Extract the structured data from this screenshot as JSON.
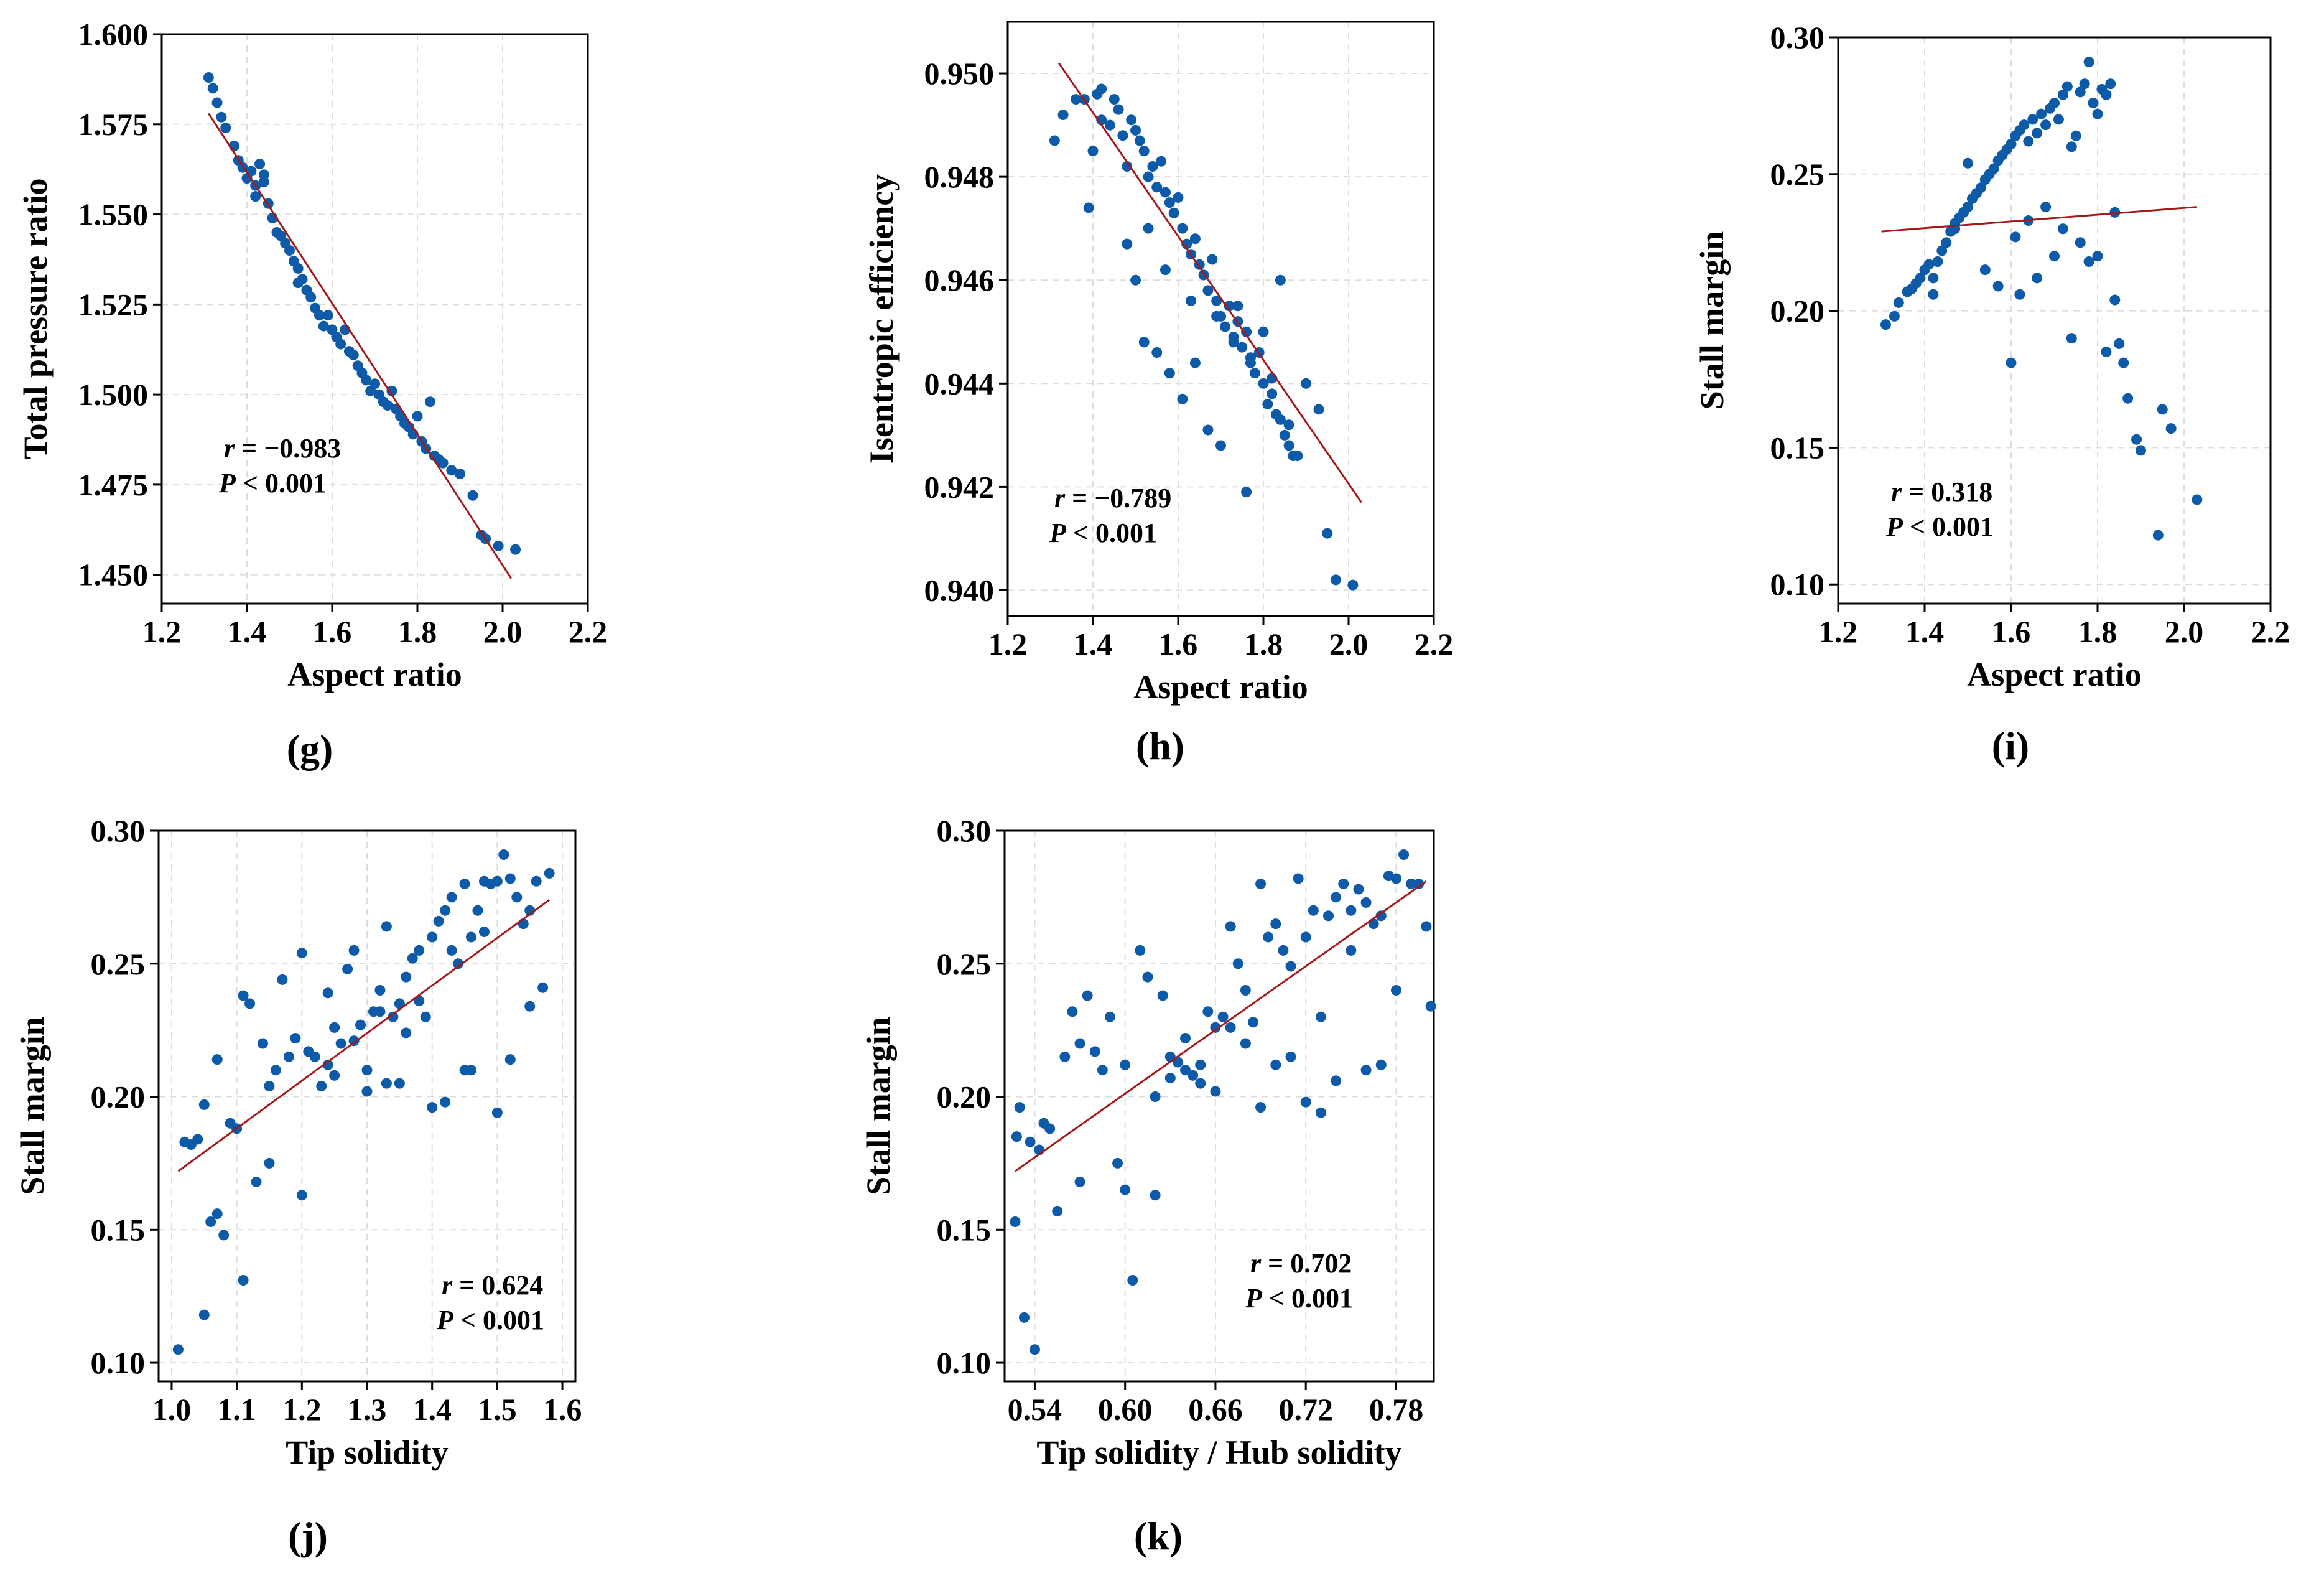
{
  "figure": {
    "point_color": "#0d5aa8",
    "fit_color": "#a31a1a"
  },
  "chart_data": [
    {
      "id": "g",
      "type": "scatter",
      "panel_label": "(g)",
      "xlabel": "Aspect ratio",
      "ylabel": "Total pressure ratio",
      "xlim": [
        1.2,
        2.2
      ],
      "ylim": [
        1.442,
        1.6
      ],
      "xticks": [
        1.2,
        1.4,
        1.6,
        1.8,
        2.0,
        2.2
      ],
      "xtick_labels": [
        "1.2",
        "1.4",
        "1.6",
        "1.8",
        "2.0",
        "2.2"
      ],
      "yticks": [
        1.45,
        1.475,
        1.5,
        1.525,
        1.55,
        1.575,
        1.6
      ],
      "ytick_labels": [
        "1.450",
        "1.475",
        "1.500",
        "1.525",
        "1.550",
        "1.575",
        "1.600"
      ],
      "stats": {
        "r_label": "r",
        "r_text": " = −0.983",
        "p_label": "P",
        "p_text": " < 0.001"
      },
      "fit_line": {
        "x": [
          1.31,
          2.02
        ],
        "y": [
          1.578,
          1.449
        ]
      },
      "points": {
        "x": [
          1.31,
          1.32,
          1.33,
          1.34,
          1.35,
          1.37,
          1.38,
          1.39,
          1.4,
          1.41,
          1.42,
          1.42,
          1.43,
          1.44,
          1.44,
          1.45,
          1.46,
          1.47,
          1.48,
          1.49,
          1.5,
          1.51,
          1.52,
          1.52,
          1.53,
          1.54,
          1.55,
          1.56,
          1.57,
          1.58,
          1.59,
          1.6,
          1.61,
          1.62,
          1.63,
          1.64,
          1.65,
          1.66,
          1.67,
          1.68,
          1.69,
          1.7,
          1.71,
          1.72,
          1.73,
          1.74,
          1.75,
          1.76,
          1.77,
          1.78,
          1.79,
          1.8,
          1.81,
          1.82,
          1.83,
          1.84,
          1.85,
          1.86,
          1.88,
          1.9,
          1.93,
          1.95,
          1.96,
          1.99,
          2.03
        ],
        "y": [
          1.588,
          1.585,
          1.581,
          1.577,
          1.574,
          1.569,
          1.565,
          1.563,
          1.56,
          1.562,
          1.558,
          1.555,
          1.564,
          1.561,
          1.559,
          1.553,
          1.549,
          1.545,
          1.544,
          1.542,
          1.54,
          1.537,
          1.535,
          1.531,
          1.532,
          1.529,
          1.527,
          1.524,
          1.522,
          1.519,
          1.522,
          1.518,
          1.516,
          1.514,
          1.518,
          1.512,
          1.511,
          1.508,
          1.506,
          1.504,
          1.501,
          1.503,
          1.5,
          1.498,
          1.497,
          1.501,
          1.496,
          1.494,
          1.492,
          1.491,
          1.489,
          1.494,
          1.487,
          1.485,
          1.498,
          1.483,
          1.482,
          1.481,
          1.479,
          1.478,
          1.472,
          1.461,
          1.46,
          1.458,
          1.457
        ]
      }
    },
    {
      "id": "h",
      "type": "scatter",
      "panel_label": "(h)",
      "xlabel": "Aspect ratio",
      "ylabel": "Isentropic efficiency",
      "xlim": [
        1.2,
        2.2
      ],
      "ylim": [
        0.9395,
        0.951
      ],
      "xticks": [
        1.2,
        1.4,
        1.6,
        1.8,
        2.0,
        2.2
      ],
      "xtick_labels": [
        "1.2",
        "1.4",
        "1.6",
        "1.8",
        "2.0",
        "2.2"
      ],
      "yticks": [
        0.94,
        0.942,
        0.944,
        0.946,
        0.948,
        0.95
      ],
      "ytick_labels": [
        "0.940",
        "0.942",
        "0.944",
        "0.946",
        "0.948",
        "0.950"
      ],
      "stats": {
        "r_label": "r",
        "r_text": " = −0.789",
        "p_label": "P",
        "p_text": " < 0.001"
      },
      "fit_line": {
        "x": [
          1.32,
          2.03
        ],
        "y": [
          0.9502,
          0.9417
        ]
      },
      "points": {
        "x": [
          1.31,
          1.33,
          1.36,
          1.38,
          1.39,
          1.4,
          1.41,
          1.42,
          1.42,
          1.44,
          1.45,
          1.46,
          1.47,
          1.48,
          1.49,
          1.5,
          1.51,
          1.52,
          1.53,
          1.54,
          1.55,
          1.56,
          1.57,
          1.58,
          1.59,
          1.6,
          1.61,
          1.62,
          1.63,
          1.64,
          1.65,
          1.66,
          1.67,
          1.68,
          1.69,
          1.7,
          1.71,
          1.72,
          1.73,
          1.74,
          1.75,
          1.76,
          1.77,
          1.78,
          1.79,
          1.8,
          1.81,
          1.82,
          1.83,
          1.84,
          1.85,
          1.86,
          1.88,
          1.9,
          1.93,
          1.95,
          1.97,
          2.01,
          1.5,
          1.52,
          1.55,
          1.58,
          1.61,
          1.64,
          1.67,
          1.7,
          1.74,
          1.76,
          1.8,
          1.84,
          1.87,
          1.48,
          1.53,
          1.57,
          1.63,
          1.69,
          1.73,
          1.77,
          1.82,
          1.86
        ],
        "y": [
          0.9487,
          0.9492,
          0.9495,
          0.9495,
          0.9474,
          0.9485,
          0.9496,
          0.9497,
          0.9491,
          0.949,
          0.9495,
          0.9493,
          0.9488,
          0.9482,
          0.9491,
          0.9489,
          0.9487,
          0.9485,
          0.948,
          0.9482,
          0.9478,
          0.9483,
          0.9477,
          0.9475,
          0.9473,
          0.9476,
          0.947,
          0.9467,
          0.9465,
          0.9468,
          0.9463,
          0.9461,
          0.9458,
          0.9464,
          0.9456,
          0.9453,
          0.9451,
          0.9455,
          0.9449,
          0.9452,
          0.9447,
          0.945,
          0.9444,
          0.9442,
          0.9446,
          0.944,
          0.9436,
          0.9441,
          0.9434,
          0.9433,
          0.943,
          0.9428,
          0.9426,
          0.944,
          0.9435,
          0.9411,
          0.9402,
          0.9401,
          0.946,
          0.9448,
          0.9446,
          0.9442,
          0.9437,
          0.9444,
          0.9431,
          0.9428,
          0.9455,
          0.9419,
          0.945,
          0.946,
          0.9426,
          0.9467,
          0.947,
          0.9462,
          0.9456,
          0.9453,
          0.9448,
          0.9445,
          0.9438,
          0.9432
        ]
      }
    },
    {
      "id": "i",
      "type": "scatter",
      "panel_label": "(i)",
      "xlabel": "Aspect ratio",
      "ylabel": "Stall margin",
      "xlim": [
        1.2,
        2.2
      ],
      "ylim": [
        0.093,
        0.3
      ],
      "xticks": [
        1.2,
        1.4,
        1.6,
        1.8,
        2.0,
        2.2
      ],
      "xtick_labels": [
        "1.2",
        "1.4",
        "1.6",
        "1.8",
        "2.0",
        "2.2"
      ],
      "yticks": [
        0.1,
        0.15,
        0.2,
        0.25,
        0.3
      ],
      "ytick_labels": [
        "0.10",
        "0.15",
        "0.20",
        "0.25",
        "0.30"
      ],
      "stats": {
        "r_label": "r",
        "r_text": " = 0.318",
        "p_label": "P",
        "p_text": " < 0.001"
      },
      "fit_line": {
        "x": [
          1.3,
          2.03
        ],
        "y": [
          0.229,
          0.238
        ]
      },
      "points": {
        "x": [
          1.31,
          1.33,
          1.34,
          1.36,
          1.37,
          1.38,
          1.39,
          1.4,
          1.41,
          1.42,
          1.42,
          1.43,
          1.44,
          1.45,
          1.46,
          1.47,
          1.48,
          1.49,
          1.5,
          1.51,
          1.52,
          1.53,
          1.54,
          1.55,
          1.56,
          1.57,
          1.58,
          1.59,
          1.6,
          1.61,
          1.62,
          1.63,
          1.64,
          1.65,
          1.66,
          1.67,
          1.68,
          1.69,
          1.7,
          1.71,
          1.72,
          1.73,
          1.74,
          1.75,
          1.76,
          1.77,
          1.78,
          1.79,
          1.8,
          1.81,
          1.82,
          1.83,
          1.84,
          1.85,
          1.86,
          1.87,
          1.89,
          1.9,
          1.94,
          1.95,
          1.97,
          2.03,
          1.6,
          1.62,
          1.66,
          1.7,
          1.74,
          1.78,
          1.82,
          1.61,
          1.64,
          1.68,
          1.72,
          1.76,
          1.8,
          1.84,
          1.54,
          1.57,
          1.5,
          1.47
        ],
        "y": [
          0.195,
          0.198,
          0.203,
          0.207,
          0.208,
          0.21,
          0.212,
          0.215,
          0.217,
          0.212,
          0.206,
          0.218,
          0.222,
          0.225,
          0.229,
          0.232,
          0.234,
          0.236,
          0.238,
          0.241,
          0.243,
          0.245,
          0.248,
          0.25,
          0.252,
          0.255,
          0.257,
          0.259,
          0.261,
          0.264,
          0.266,
          0.268,
          0.262,
          0.27,
          0.265,
          0.272,
          0.268,
          0.274,
          0.276,
          0.27,
          0.279,
          0.282,
          0.26,
          0.264,
          0.28,
          0.283,
          0.291,
          0.276,
          0.272,
          0.281,
          0.279,
          0.283,
          0.204,
          0.188,
          0.181,
          0.168,
          0.153,
          0.149,
          0.118,
          0.164,
          0.157,
          0.131,
          0.181,
          0.206,
          0.212,
          0.22,
          0.19,
          0.218,
          0.185,
          0.227,
          0.233,
          0.238,
          0.23,
          0.225,
          0.22,
          0.236,
          0.215,
          0.209,
          0.254,
          0.23
        ]
      }
    },
    {
      "id": "j",
      "type": "scatter",
      "panel_label": "(j)",
      "xlabel": "Tip solidity",
      "ylabel": "Stall margin",
      "xlim": [
        0.98,
        1.62
      ],
      "ylim": [
        0.093,
        0.3
      ],
      "xticks": [
        1.0,
        1.1,
        1.2,
        1.3,
        1.4,
        1.5,
        1.6
      ],
      "xtick_labels": [
        "1.0",
        "1.1",
        "1.2",
        "1.3",
        "1.4",
        "1.5",
        "1.6"
      ],
      "yticks": [
        0.1,
        0.15,
        0.2,
        0.25,
        0.3
      ],
      "ytick_labels": [
        "0.10",
        "0.15",
        "0.20",
        "0.25",
        "0.30"
      ],
      "stats": {
        "r_label": "r",
        "r_text": " = 0.624",
        "p_label": "P",
        "p_text": " < 0.001"
      },
      "fit_line": {
        "x": [
          1.01,
          1.58
        ],
        "y": [
          0.172,
          0.274
        ]
      },
      "points": {
        "x": [
          1.01,
          1.02,
          1.03,
          1.04,
          1.05,
          1.06,
          1.07,
          1.08,
          1.09,
          1.1,
          1.11,
          1.12,
          1.13,
          1.14,
          1.15,
          1.16,
          1.17,
          1.18,
          1.19,
          1.2,
          1.21,
          1.22,
          1.23,
          1.24,
          1.25,
          1.26,
          1.27,
          1.28,
          1.29,
          1.3,
          1.31,
          1.32,
          1.33,
          1.34,
          1.35,
          1.36,
          1.37,
          1.38,
          1.39,
          1.4,
          1.41,
          1.42,
          1.43,
          1.44,
          1.45,
          1.46,
          1.47,
          1.48,
          1.49,
          1.5,
          1.51,
          1.52,
          1.53,
          1.54,
          1.55,
          1.56,
          1.57,
          1.58,
          1.05,
          1.07,
          1.11,
          1.15,
          1.2,
          1.25,
          1.3,
          1.35,
          1.4,
          1.45,
          1.5,
          1.55,
          1.24,
          1.28,
          1.32,
          1.36,
          1.42,
          1.46,
          1.33,
          1.38,
          1.43,
          1.48,
          1.52
        ],
        "y": [
          0.105,
          0.183,
          0.182,
          0.184,
          0.118,
          0.153,
          0.156,
          0.148,
          0.19,
          0.188,
          0.131,
          0.235,
          0.168,
          0.22,
          0.175,
          0.21,
          0.244,
          0.215,
          0.222,
          0.163,
          0.217,
          0.215,
          0.204,
          0.239,
          0.226,
          0.22,
          0.248,
          0.255,
          0.227,
          0.21,
          0.232,
          0.24,
          0.264,
          0.23,
          0.235,
          0.245,
          0.252,
          0.255,
          0.23,
          0.26,
          0.266,
          0.27,
          0.275,
          0.25,
          0.28,
          0.26,
          0.27,
          0.281,
          0.28,
          0.281,
          0.291,
          0.282,
          0.275,
          0.265,
          0.27,
          0.281,
          0.241,
          0.284,
          0.197,
          0.214,
          0.238,
          0.204,
          0.254,
          0.208,
          0.202,
          0.205,
          0.196,
          0.21,
          0.194,
          0.234,
          0.212,
          0.221,
          0.232,
          0.224,
          0.198,
          0.21,
          0.205,
          0.236,
          0.255,
          0.262,
          0.214
        ]
      }
    },
    {
      "id": "k",
      "type": "scatter",
      "panel_label": "(k)",
      "xlabel": "Tip solidity / Hub solidity",
      "ylabel": "Stall margin",
      "xlim": [
        0.52,
        0.805
      ],
      "ylim": [
        0.093,
        0.3
      ],
      "xticks": [
        0.54,
        0.6,
        0.66,
        0.72,
        0.78
      ],
      "xtick_labels": [
        "0.54",
        "0.60",
        "0.66",
        "0.72",
        "0.78"
      ],
      "yticks": [
        0.1,
        0.15,
        0.2,
        0.25,
        0.3
      ],
      "ytick_labels": [
        "0.10",
        "0.15",
        "0.20",
        "0.25",
        "0.30"
      ],
      "stats": {
        "r_label": "r",
        "r_text": " = 0.702",
        "p_label": "P",
        "p_text": " < 0.001"
      },
      "fit_line": {
        "x": [
          0.527,
          0.8
        ],
        "y": [
          0.172,
          0.281
        ]
      },
      "points": {
        "x": [
          0.527,
          0.528,
          0.53,
          0.533,
          0.537,
          0.54,
          0.543,
          0.546,
          0.55,
          0.555,
          0.56,
          0.565,
          0.57,
          0.575,
          0.58,
          0.585,
          0.59,
          0.595,
          0.6,
          0.605,
          0.61,
          0.615,
          0.62,
          0.625,
          0.63,
          0.635,
          0.64,
          0.645,
          0.65,
          0.655,
          0.66,
          0.665,
          0.67,
          0.675,
          0.68,
          0.685,
          0.69,
          0.695,
          0.7,
          0.705,
          0.71,
          0.715,
          0.72,
          0.725,
          0.73,
          0.735,
          0.74,
          0.745,
          0.75,
          0.755,
          0.76,
          0.765,
          0.77,
          0.775,
          0.78,
          0.785,
          0.79,
          0.795,
          0.8,
          0.803,
          0.62,
          0.64,
          0.66,
          0.68,
          0.7,
          0.72,
          0.74,
          0.76,
          0.78,
          0.65,
          0.67,
          0.69,
          0.71,
          0.73,
          0.75,
          0.77,
          0.6,
          0.63,
          0.57
        ],
        "y": [
          0.153,
          0.185,
          0.196,
          0.117,
          0.183,
          0.105,
          0.18,
          0.19,
          0.188,
          0.157,
          0.215,
          0.232,
          0.22,
          0.238,
          0.217,
          0.21,
          0.23,
          0.175,
          0.212,
          0.131,
          0.255,
          0.245,
          0.163,
          0.238,
          0.215,
          0.213,
          0.222,
          0.208,
          0.205,
          0.232,
          0.226,
          0.23,
          0.264,
          0.25,
          0.24,
          0.228,
          0.28,
          0.26,
          0.265,
          0.255,
          0.249,
          0.282,
          0.26,
          0.27,
          0.23,
          0.268,
          0.275,
          0.28,
          0.27,
          0.278,
          0.273,
          0.265,
          0.268,
          0.283,
          0.282,
          0.291,
          0.28,
          0.28,
          0.264,
          0.234,
          0.2,
          0.21,
          0.202,
          0.22,
          0.212,
          0.198,
          0.206,
          0.21,
          0.24,
          0.212,
          0.226,
          0.196,
          0.215,
          0.194,
          0.255,
          0.212,
          0.165,
          0.207,
          0.168
        ]
      }
    }
  ]
}
